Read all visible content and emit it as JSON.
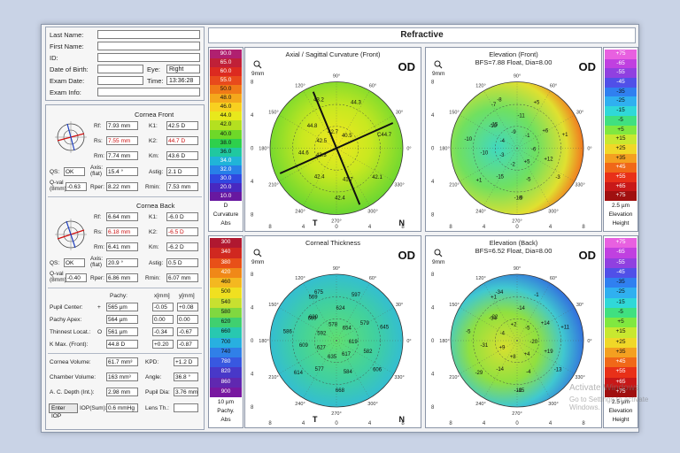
{
  "window_title": "Refractive",
  "patient": {
    "last_name_label": "Last Name:",
    "first_name_label": "First Name:",
    "id_label": "ID:",
    "dob_label": "Date of Birth:",
    "eye_label": "Eye:",
    "eye_value": "Right",
    "exam_date_label": "Exam Date:",
    "time_label": "Time:",
    "time_value": "13:36:28",
    "exam_info_label": "Exam Info:"
  },
  "cornea_front": {
    "title": "Cornea Front",
    "rf_label": "Rf:",
    "rf": "7.93 mm",
    "k1_label": "K1:",
    "k1": "42.5 D",
    "rs_label": "Rs:",
    "rs": "7.55 mm",
    "k2_label": "K2:",
    "k2": "44.7 D",
    "rm_label": "Rm:",
    "rm": "7.74 mm",
    "km_label": "Km:",
    "km": "43.6 D",
    "qs_label": "QS:",
    "qs": "OK",
    "axis_label": "Axis:\n(flat)",
    "axis": "15.4 °",
    "astig_label": "Astig:",
    "astig": "2.1 D",
    "qval_label": "Q-val\n(8mm)",
    "qval": "-0.63",
    "rper_label": "Rper:",
    "rper": "8.22 mm",
    "rmin_label": "Rmin:",
    "rmin": "7.53 mm"
  },
  "cornea_back": {
    "title": "Cornea Back",
    "rf_label": "Rf:",
    "rf": "6.64 mm",
    "k1_label": "K1:",
    "k1": "-6.0 D",
    "rs_label": "Rs:",
    "rs": "6.18 mm",
    "k2_label": "K2:",
    "k2": "-6.5 D",
    "rm_label": "Rm:",
    "rm": "6.41 mm",
    "km_label": "Km:",
    "km": "-6.2 D",
    "qs_label": "QS:",
    "qs": "OK",
    "axis_label": "Axis:\n(flat)",
    "axis": "20.9 °",
    "astig_label": "Astig:",
    "astig": "0.5 D",
    "qval_label": "Q-val\n(8mm)",
    "qval": "-0.40",
    "rper_label": "Rper:",
    "rper": "6.86 mm",
    "rmin_label": "Rmin:",
    "rmin": "6.07 mm"
  },
  "pachy": {
    "col_pachy": "Pachy:",
    "col_x": "x[mm]",
    "col_y": "y[mm]",
    "rows": [
      {
        "label": "Pupil Center:",
        "marker": "+",
        "pachy": "565 µm",
        "x": "-0.05",
        "y": "+0.08"
      },
      {
        "label": "Pachy Apex:",
        "marker": "",
        "pachy": "564 µm",
        "x": "0.00",
        "y": "0.00"
      },
      {
        "label": "Thinnest Locat.:",
        "marker": "O",
        "pachy": "561 µm",
        "x": "-0.34",
        "y": "-0.67"
      },
      {
        "label": "K Max. (Front):",
        "marker": "",
        "pachy": "44.8 D",
        "x": "+0.20",
        "y": "-0.87"
      }
    ],
    "cornea_volume_label": "Cornea Volume:",
    "cornea_volume": "61.7 mm³",
    "kpd_label": "KPD:",
    "kpd": "+1.2 D",
    "chamber_volume_label": "Chamber Volume:",
    "chamber_volume": "163 mm³",
    "angle_label": "Angle:",
    "angle": "36.8 °",
    "ac_depth_label": "A. C. Depth (Int.):",
    "ac_depth": "2.98 mm",
    "pupil_dia_label": "Pupil Dia:",
    "pupil_dia": "3.76 mm",
    "enter_iop": "Enter IOP",
    "iop_label": "IOP(Sum):",
    "iop": "0.6 mmHg",
    "lens_th_label": "Lens Th.:",
    "lens_th": ""
  },
  "maps": {
    "axial": {
      "title": "Axial / Sagittal Curvature (Front)",
      "od": "OD",
      "mm": "9mm",
      "t": "T",
      "n": "N",
      "values": [
        "43.2",
        "44.8",
        "42.4",
        "40.5",
        "44.6",
        "42.1",
        "42.7",
        "42.4",
        "C44.7",
        "42.5",
        "41.7",
        "44.3",
        "43.3"
      ]
    },
    "elev_front": {
      "title": "Elevation (Front)",
      "subtitle": "BFS=7.88 Float, Dia=8.00",
      "od": "OD",
      "mm": "9mm",
      "values": [
        "-8",
        "-19",
        "-9",
        "-1",
        "-10",
        "-3",
        "-9",
        "-15",
        "+1",
        "-4",
        "-5",
        "+5",
        "-3",
        "+12",
        "-7",
        "-2",
        "+6",
        "-10",
        "+5",
        "-11",
        "+1",
        "-6",
        "-15",
        "-18"
      ]
    },
    "thickness": {
      "title": "Corneal Thickness",
      "od": "OD",
      "mm": "9mm",
      "t": "T",
      "n": "N",
      "values": [
        "675",
        "669",
        "668",
        "654",
        "609",
        "606",
        "578",
        "577",
        "645",
        "592",
        "584",
        "597",
        "627",
        "582",
        "569",
        "635",
        "579",
        "586",
        "617",
        "624",
        "614",
        "619",
        "620"
      ]
    },
    "elev_back": {
      "title": "Elevation (Back)",
      "subtitle": "BFS=6.52 Float, Dia=8.00",
      "od": "OD",
      "mm": "9mm",
      "values": [
        "-34",
        "-34",
        "-15",
        "-5",
        "-31",
        "-13",
        "+2",
        "-14",
        "+11",
        "-4",
        "-4",
        "-1",
        "+9",
        "+19",
        "+1",
        "+8",
        "+14",
        "-5",
        "+4",
        "-14",
        "-29",
        "-20",
        "-22",
        "-10"
      ]
    },
    "tick_labels_y": [
      "8",
      "4",
      "0",
      "4",
      "8"
    ],
    "tick_labels_x": [
      "8",
      "4",
      "0",
      "4",
      "8"
    ],
    "angle_labels": [
      "90°",
      "120°",
      "60°",
      "150°",
      "30°",
      "180°",
      "0°",
      "210°",
      "330°",
      "240°",
      "300°",
      "270°"
    ]
  },
  "scales": {
    "curvature": {
      "values": [
        "90.0",
        "65.0",
        "60.0",
        "55.0",
        "50.0",
        "48.0",
        "46.0",
        "44.0",
        "42.0",
        "40.0",
        "38.0",
        "36.0",
        "34.0",
        "32.0",
        "30.0",
        "20.0",
        "10.0"
      ],
      "colors": [
        "#b02070",
        "#c02038",
        "#dc2a20",
        "#e84a1c",
        "#f07a18",
        "#f4a81c",
        "#f8d020",
        "#e8e81c",
        "#b4e020",
        "#6ed828",
        "#2ed04c",
        "#20c8a0",
        "#20b4d8",
        "#2880e8",
        "#3048e0",
        "#4828c0",
        "#6818a0"
      ],
      "step": "D",
      "label": "Curvature",
      "mode": "Abs"
    },
    "elevation_front": {
      "values": [
        "+75",
        "-65",
        "-55",
        "-45",
        "-35",
        "-25",
        "-15",
        "-5",
        "+5",
        "+15",
        "+25",
        "+35",
        "+45",
        "+55",
        "+65",
        "+75"
      ],
      "colors": [
        "#e860e0",
        "#c040e0",
        "#9040e0",
        "#5050e8",
        "#3080f0",
        "#30b0f0",
        "#30d8d8",
        "#40e080",
        "#80e840",
        "#c8e830",
        "#f0d828",
        "#f4a020",
        "#f06818",
        "#e83018",
        "#c81818",
        "#a01010"
      ],
      "step": "2.5 µm",
      "label": "Elevation",
      "mode": "Height"
    },
    "pachy": {
      "values": [
        "300",
        "340",
        "380",
        "420",
        "460",
        "500",
        "540",
        "580",
        "620",
        "660",
        "700",
        "740",
        "780",
        "820",
        "860",
        "900"
      ],
      "colors": [
        "#b01830",
        "#d02820",
        "#e85018",
        "#f08818",
        "#f4b820",
        "#f0e020",
        "#c8e030",
        "#80d840",
        "#40d070",
        "#28c8b0",
        "#28b0e0",
        "#3080e8",
        "#3858e0",
        "#4838c8",
        "#6028b0",
        "#7818a0"
      ],
      "step": "10 µm",
      "label": "Pachy.",
      "mode": "Abs"
    },
    "elevation_back": {
      "values": [
        "+75",
        "-65",
        "-55",
        "-45",
        "-35",
        "-25",
        "-15",
        "-5",
        "+5",
        "+15",
        "+25",
        "+35",
        "+45",
        "+55",
        "+65",
        "+75"
      ],
      "colors": [
        "#e860e0",
        "#c040e0",
        "#9040e0",
        "#5050e8",
        "#3080f0",
        "#30b0f0",
        "#30d8d8",
        "#40e080",
        "#80e840",
        "#c8e830",
        "#f0d828",
        "#f4a020",
        "#f06818",
        "#e83018",
        "#c81818",
        "#a01010"
      ],
      "step": "2.5 µm",
      "label": "Elevation",
      "mode": "Height"
    }
  },
  "overlay": {
    "activate_title": "Activate Windows",
    "activate_sub": "Go to Settings to activate Windows."
  }
}
